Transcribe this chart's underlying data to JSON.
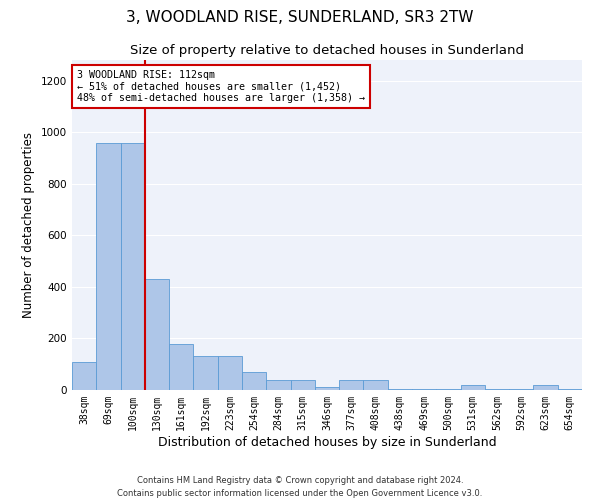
{
  "title": "3, WOODLAND RISE, SUNDERLAND, SR3 2TW",
  "subtitle": "Size of property relative to detached houses in Sunderland",
  "xlabel": "Distribution of detached houses by size in Sunderland",
  "ylabel": "Number of detached properties",
  "categories": [
    "38sqm",
    "69sqm",
    "100sqm",
    "130sqm",
    "161sqm",
    "192sqm",
    "223sqm",
    "254sqm",
    "284sqm",
    "315sqm",
    "346sqm",
    "377sqm",
    "408sqm",
    "438sqm",
    "469sqm",
    "500sqm",
    "531sqm",
    "562sqm",
    "592sqm",
    "623sqm",
    "654sqm"
  ],
  "values": [
    110,
    960,
    960,
    430,
    180,
    130,
    130,
    70,
    40,
    40,
    10,
    40,
    40,
    5,
    5,
    5,
    20,
    5,
    5,
    20,
    5
  ],
  "bar_color": "#aec6e8",
  "bar_edgecolor": "#5b9bd5",
  "annotation_text": "3 WOODLAND RISE: 112sqm\n← 51% of detached houses are smaller (1,452)\n48% of semi-detached houses are larger (1,358) →",
  "annotation_box_color": "#ffffff",
  "annotation_border_color": "#cc0000",
  "vline_color": "#cc0000",
  "vline_x": 2.5,
  "ylim": [
    0,
    1280
  ],
  "yticks": [
    0,
    200,
    400,
    600,
    800,
    1000,
    1200
  ],
  "background_color": "#eef2fa",
  "footer": "Contains HM Land Registry data © Crown copyright and database right 2024.\nContains public sector information licensed under the Open Government Licence v3.0.",
  "title_fontsize": 11,
  "subtitle_fontsize": 9.5,
  "xlabel_fontsize": 9,
  "ylabel_fontsize": 8.5
}
